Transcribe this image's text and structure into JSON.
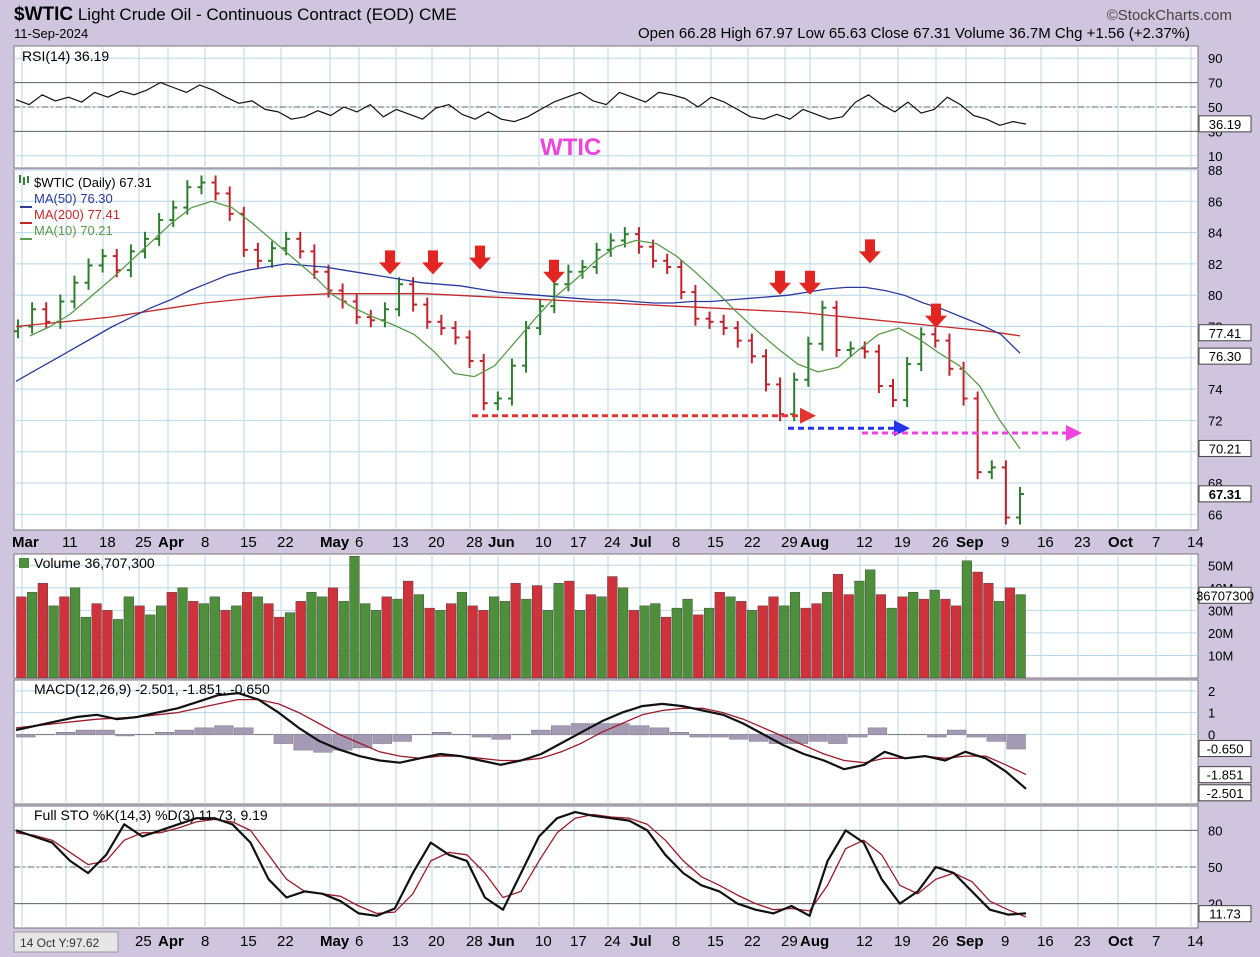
{
  "header": {
    "symbol": "$WTIC",
    "name": "Light Crude Oil - Continuous Contract (EOD)",
    "exchange": "CME",
    "date": "11-Sep-2024",
    "brand": "©StockCharts.com",
    "ohlc": "Open 66.28  High 67.97  Low 65.63  Close 67.31  Volume 36.7M  Chg +1.56 (+2.37%)"
  },
  "colors": {
    "panel_bg": "#ffffff",
    "frame_bg": "#cfc5de",
    "grid": "#b9d7e6",
    "up": "#2f7d2f",
    "down": "#c0242c",
    "ma50": "#2b3a9c",
    "ma200": "#c62828",
    "ma10": "#5a9a4a",
    "vol_up": "#4d8f3a",
    "vol_down": "#d0323c",
    "hist": "#a59ab6",
    "arrow": "#e32521",
    "wtic_label": "#ee44dd"
  },
  "chart_data": [
    {
      "type": "line",
      "name": "RSI panel",
      "label": "RSI(14) 36.19",
      "current_value": "36.19",
      "ylim": [
        0,
        100
      ],
      "yticks": [
        "90",
        "70",
        "50",
        "30",
        "10"
      ],
      "values": [
        56,
        52,
        60,
        55,
        58,
        54,
        62,
        58,
        63,
        60,
        64,
        70,
        66,
        62,
        68,
        64,
        58,
        53,
        55,
        48,
        46,
        40,
        42,
        47,
        43,
        50,
        46,
        52,
        42,
        48,
        44,
        40,
        49,
        52,
        44,
        40,
        46,
        40,
        38,
        42,
        48,
        54,
        58,
        62,
        55,
        52,
        62,
        58,
        54,
        62,
        60,
        57,
        50,
        58,
        54,
        48,
        42,
        40,
        44,
        40,
        48,
        44,
        40,
        42,
        54,
        60,
        52,
        46,
        54,
        45,
        48,
        58,
        52,
        43,
        40,
        35,
        38,
        36
      ]
    },
    {
      "type": "bar",
      "name": "Price panel",
      "legend": [
        "$WTIC (Daily) 67.31",
        "MA(50) 76.30",
        "MA(200) 77.41",
        "MA(10) 70.21"
      ],
      "annotation": "WTIC",
      "ylim": [
        65,
        88
      ],
      "yticks": [
        "88",
        "86",
        "84",
        "82",
        "80",
        "78",
        "76",
        "74",
        "72",
        "70",
        "68",
        "66"
      ],
      "value_labels": {
        "ma200": "77.41",
        "ma50": "76.30",
        "ma10": "70.21",
        "close": "67.31"
      },
      "x_labels": [
        "Mar",
        "11",
        "18",
        "25",
        "Apr",
        "8",
        "15",
        "22",
        "May",
        "6",
        "13",
        "20",
        "28",
        "Jun",
        "10",
        "17",
        "24",
        "Jul",
        "8",
        "15",
        "22",
        "29",
        "Aug",
        "12",
        "19",
        "26",
        "Sep",
        "9",
        "16",
        "23",
        "Oct",
        "7",
        "14"
      ],
      "close": [
        78.0,
        79.1,
        78.3,
        79.6,
        80.8,
        81.9,
        82.5,
        81.6,
        82.8,
        83.6,
        84.8,
        85.6,
        86.9,
        87.2,
        86.5,
        85.2,
        82.9,
        82.2,
        83.0,
        83.6,
        82.8,
        81.5,
        80.3,
        79.6,
        78.6,
        78.4,
        79.1,
        80.7,
        79.4,
        78.3,
        77.9,
        77.3,
        75.8,
        73.1,
        73.4,
        75.5,
        77.9,
        79.3,
        80.7,
        81.5,
        81.8,
        82.9,
        83.5,
        83.9,
        83.1,
        82.2,
        81.8,
        80.2,
        78.5,
        78.3,
        77.9,
        77.1,
        76.1,
        74.3,
        72.4,
        74.6,
        76.9,
        79.2,
        76.5,
        76.6,
        76.4,
        74.2,
        73.3,
        75.6,
        77.5,
        77.1,
        75.3,
        73.4,
        68.7,
        69.0,
        65.8,
        67.3
      ],
      "ma50": [
        74.5,
        75.2,
        75.9,
        76.6,
        77.3,
        78.0,
        78.6,
        79.2,
        79.7,
        80.3,
        80.8,
        81.3,
        81.6,
        81.8,
        82.0,
        81.9,
        81.8,
        81.6,
        81.4,
        81.2,
        81.0,
        80.8,
        80.7,
        80.6,
        80.4,
        80.2,
        80.1,
        80.0,
        79.9,
        79.8,
        79.7,
        79.7,
        79.6,
        79.5,
        79.5,
        79.6,
        79.6,
        79.7,
        79.8,
        79.9,
        80.0,
        80.2,
        80.4,
        80.5,
        80.5,
        80.3,
        80.0,
        79.5,
        79.1,
        78.6,
        78.1,
        77.5,
        76.3
      ],
      "ma200": [
        78.0,
        78.2,
        78.4,
        78.6,
        78.9,
        79.2,
        79.5,
        79.7,
        79.9,
        80.0,
        80.1,
        80.1,
        80.1,
        80.1,
        80.0,
        79.9,
        79.8,
        79.7,
        79.6,
        79.5,
        79.4,
        79.3,
        79.2,
        79.1,
        79.0,
        78.9,
        78.7,
        78.5,
        78.3,
        78.1,
        77.9,
        77.7,
        77.4
      ],
      "ma10": [
        77.4,
        78.0,
        78.8,
        79.9,
        81.0,
        82.2,
        83.4,
        84.6,
        85.6,
        86.0,
        85.6,
        84.6,
        83.5,
        82.4,
        81.3,
        80.0,
        79.2,
        78.6,
        78.1,
        77.5,
        76.4,
        75.0,
        74.8,
        75.5,
        77.0,
        78.5,
        79.9,
        81.0,
        82.2,
        83.1,
        83.5,
        83.3,
        82.5,
        81.4,
        80.2,
        78.9,
        77.7,
        76.6,
        75.6,
        75.1,
        75.4,
        76.5,
        77.5,
        77.9,
        77.2,
        76.3,
        75.5,
        74.2,
        72.0,
        70.2
      ]
    },
    {
      "type": "bar",
      "name": "Volume panel",
      "label": "Volume 36,707,300",
      "value_label": "36707300",
      "ylim": [
        0,
        55
      ],
      "yticks": [
        "50M",
        "40M",
        "30M",
        "20M",
        "10M"
      ],
      "values": [
        36,
        38,
        42,
        32,
        36,
        40,
        27,
        33,
        30,
        26,
        36,
        32,
        28,
        32,
        38,
        40,
        34,
        33,
        36,
        30,
        32,
        38,
        36,
        33,
        27,
        29,
        34,
        38,
        36,
        40,
        34,
        54,
        33,
        30,
        36,
        35,
        43,
        37,
        31,
        30,
        33,
        38,
        32,
        30,
        36,
        34,
        42,
        35,
        41,
        30,
        42,
        43,
        30,
        37,
        36,
        45,
        40,
        30,
        32,
        33,
        27,
        31,
        35,
        28,
        31,
        38,
        36,
        34,
        30,
        32,
        36,
        32,
        38,
        31,
        33,
        38,
        46,
        37,
        43,
        48,
        37,
        31,
        36,
        38,
        35,
        39,
        35,
        32,
        52,
        47,
        42,
        34,
        40,
        37
      ],
      "up": [
        0,
        1,
        0,
        1,
        0,
        1,
        1,
        0,
        0,
        1,
        1,
        0,
        1,
        1,
        0,
        1,
        0,
        1,
        1,
        0,
        1,
        0,
        1,
        0,
        0,
        1,
        0,
        1,
        1,
        0,
        1,
        1,
        1,
        1,
        0,
        1,
        0,
        1,
        0,
        1,
        0,
        1,
        0,
        0,
        1,
        1,
        0,
        1,
        0,
        1,
        1,
        0,
        1,
        0,
        1,
        0,
        1,
        0,
        1,
        1,
        0,
        1,
        1,
        0,
        1,
        0,
        1,
        0,
        1,
        0,
        0,
        1,
        1,
        0,
        0,
        1,
        0,
        0,
        1,
        1,
        0,
        1,
        0,
        1,
        0,
        1,
        0,
        0,
        1,
        0,
        0,
        1,
        0,
        1
      ]
    },
    {
      "type": "line",
      "name": "MACD panel",
      "label": "MACD(12,26,9) -2.501, -1.851, -0.650",
      "ylim": [
        -3.2,
        2.5
      ],
      "yticks": [
        "2",
        "1",
        "0"
      ],
      "value_labels": [
        "-0.650",
        "-1.851",
        "-2.501"
      ],
      "macd": [
        0.2,
        0.4,
        0.6,
        0.8,
        0.9,
        0.7,
        0.8,
        1.0,
        1.2,
        1.5,
        1.8,
        1.9,
        1.6,
        1.0,
        0.3,
        -0.3,
        -0.7,
        -1.0,
        -1.2,
        -1.3,
        -1.1,
        -0.9,
        -1.0,
        -1.2,
        -1.4,
        -1.2,
        -0.9,
        -0.4,
        0.1,
        0.6,
        1.0,
        1.3,
        1.4,
        1.3,
        1.1,
        0.9,
        0.5,
        0.0,
        -0.5,
        -0.9,
        -1.2,
        -1.6,
        -1.4,
        -0.8,
        -1.1,
        -1.0,
        -1.2,
        -0.8,
        -1.1,
        -1.7,
        -2.5
      ],
      "signal": [
        0.3,
        0.4,
        0.5,
        0.6,
        0.7,
        0.75,
        0.8,
        0.9,
        1.0,
        1.2,
        1.4,
        1.6,
        1.6,
        1.4,
        1.0,
        0.5,
        0.0,
        -0.4,
        -0.8,
        -1.0,
        -1.1,
        -1.0,
        -1.0,
        -1.1,
        -1.2,
        -1.2,
        -1.1,
        -0.8,
        -0.4,
        0.1,
        0.5,
        0.9,
        1.1,
        1.2,
        1.2,
        1.0,
        0.7,
        0.3,
        -0.1,
        -0.5,
        -0.9,
        -1.2,
        -1.3,
        -1.1,
        -1.1,
        -1.0,
        -1.1,
        -1.0,
        -1.0,
        -1.4,
        -1.85
      ],
      "histogram": [
        -0.1,
        0.0,
        0.1,
        0.2,
        0.2,
        -0.05,
        0.0,
        0.1,
        0.2,
        0.3,
        0.4,
        0.3,
        0.0,
        -0.4,
        -0.7,
        -0.8,
        -0.7,
        -0.6,
        -0.4,
        -0.3,
        0.0,
        0.1,
        0.0,
        -0.1,
        -0.2,
        0.0,
        0.2,
        0.4,
        0.5,
        0.5,
        0.5,
        0.4,
        0.3,
        0.1,
        -0.1,
        -0.1,
        -0.2,
        -0.3,
        -0.4,
        -0.4,
        -0.3,
        -0.4,
        -0.1,
        0.3,
        0.0,
        0.0,
        -0.1,
        0.2,
        -0.1,
        -0.3,
        -0.65
      ]
    },
    {
      "type": "line",
      "name": "Full STO panel",
      "label": "Full STO %K(14,3) %D(3) 11.73, 9.19",
      "ylim": [
        0,
        100
      ],
      "yticks": [
        "80",
        "50",
        "20"
      ],
      "value_label": "11.73",
      "k": [
        80,
        75,
        70,
        55,
        45,
        60,
        85,
        75,
        80,
        85,
        90,
        90,
        85,
        70,
        40,
        25,
        30,
        28,
        22,
        12,
        10,
        16,
        45,
        70,
        60,
        55,
        25,
        15,
        45,
        75,
        90,
        95,
        92,
        90,
        88,
        80,
        60,
        45,
        35,
        30,
        20,
        15,
        12,
        18,
        10,
        55,
        80,
        70,
        40,
        20,
        30,
        50,
        45,
        30,
        15,
        11,
        12
      ],
      "d": [
        78,
        76,
        72,
        62,
        52,
        55,
        72,
        78,
        78,
        82,
        87,
        89,
        87,
        80,
        60,
        40,
        30,
        28,
        26,
        18,
        12,
        13,
        28,
        55,
        62,
        60,
        45,
        25,
        30,
        55,
        78,
        90,
        93,
        91,
        90,
        85,
        72,
        55,
        42,
        35,
        27,
        20,
        15,
        16,
        14,
        35,
        65,
        72,
        60,
        35,
        28,
        40,
        45,
        38,
        22,
        15,
        9
      ]
    }
  ],
  "status": "14 Oct Y:97.62"
}
